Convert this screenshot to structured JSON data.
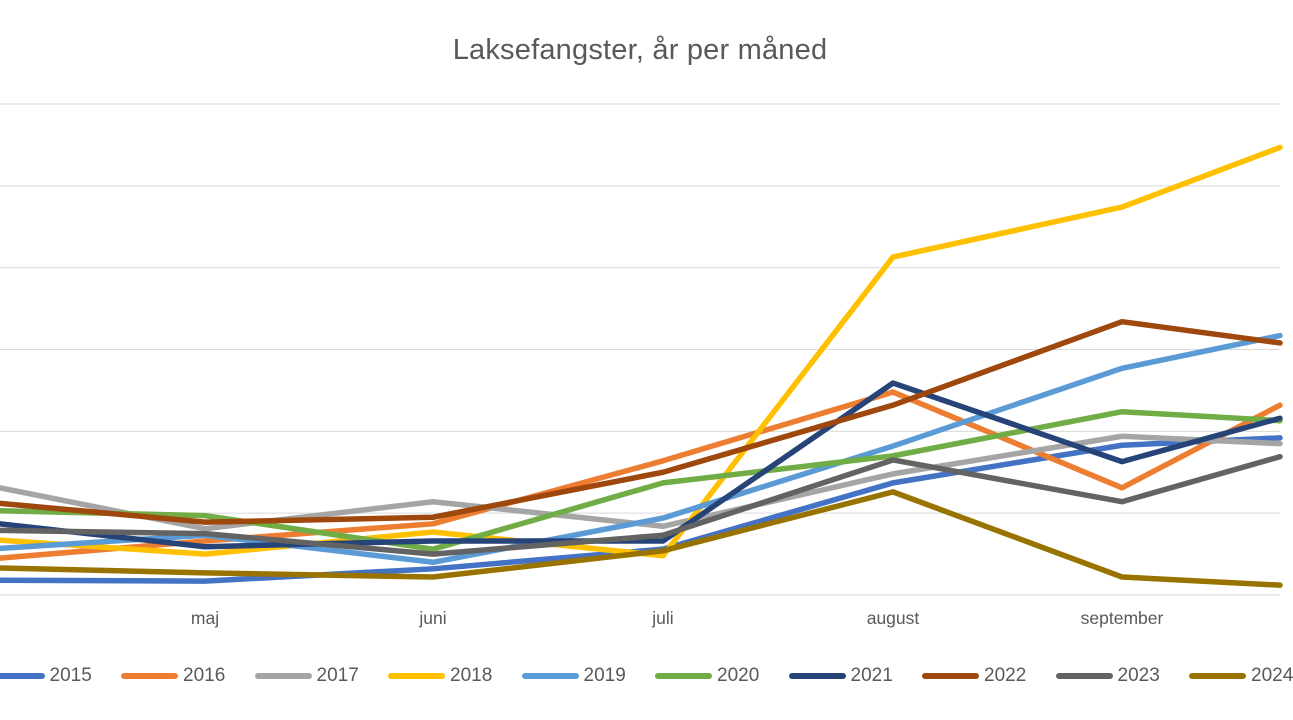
{
  "title": "Laksefangster, år per måned",
  "chart_data": {
    "type": "line",
    "title": "Laksefangster, år per måned",
    "categories": [
      "maj",
      "juni",
      "juli",
      "august",
      "september"
    ],
    "x_axis": {
      "tick_labels": [
        "maj",
        "juni",
        "juli",
        "august",
        "september"
      ],
      "note": "chart frame is cropped: every line continues past the left and right image edges"
    },
    "y_axis": {
      "tick_labels_visible": false,
      "gridline_count": 7,
      "range_gridline_units": [
        0,
        6
      ],
      "units_note": "values expressed in horizontal-gridline intervals above the bottom gridline; numeric axis labels lie outside the cropped frame"
    },
    "legend": {
      "position": "bottom",
      "entries": [
        "2015",
        "2016",
        "2017",
        "2018",
        "2019",
        "2020",
        "2021",
        "2022",
        "2023",
        "2024"
      ],
      "last_entry_clipped_at_right_edge": true,
      "first_swatch_clipped_at_left_edge": true
    },
    "grid": true,
    "series": [
      {
        "name": "2015",
        "color": "#4472C4",
        "edge_left": 0.18,
        "values": [
          0.17,
          0.32,
          0.56,
          1.37,
          1.83
        ],
        "edge_right": 1.92
      },
      {
        "name": "2016",
        "color": "#ED7D31",
        "edge_left": 0.45,
        "values": [
          0.66,
          0.87,
          1.64,
          2.48,
          1.31
        ],
        "edge_right": 2.32
      },
      {
        "name": "2017",
        "color": "#A5A5A5",
        "edge_left": 1.31,
        "values": [
          0.81,
          1.14,
          0.84,
          1.48,
          1.94
        ],
        "edge_right": 1.85
      },
      {
        "name": "2018",
        "color": "#FFC000",
        "edge_left": 0.67,
        "values": [
          0.5,
          0.77,
          0.48,
          4.13,
          4.74
        ],
        "edge_right": 5.47
      },
      {
        "name": "2019",
        "color": "#5B9BD5",
        "edge_left": 0.57,
        "values": [
          0.73,
          0.4,
          0.94,
          1.82,
          2.77
        ],
        "edge_right": 3.17
      },
      {
        "name": "2020",
        "color": "#70AD47",
        "edge_left": 1.03,
        "values": [
          0.97,
          0.56,
          1.37,
          1.7,
          2.24
        ],
        "edge_right": 2.13
      },
      {
        "name": "2021",
        "color": "#264478",
        "edge_left": 0.87,
        "values": [
          0.59,
          0.66,
          0.66,
          2.59,
          1.63
        ],
        "edge_right": 2.16
      },
      {
        "name": "2022",
        "color": "#9E480E",
        "edge_left": 1.12,
        "values": [
          0.89,
          0.95,
          1.5,
          2.32,
          3.34
        ],
        "edge_right": 3.08
      },
      {
        "name": "2023",
        "color": "#636363",
        "edge_left": 0.79,
        "values": [
          0.75,
          0.5,
          0.73,
          1.65,
          1.14
        ],
        "edge_right": 1.69
      },
      {
        "name": "2024",
        "color": "#997300",
        "edge_left": 0.33,
        "values": [
          0.27,
          0.22,
          0.54,
          1.26,
          0.22
        ],
        "edge_right": 0.12
      }
    ],
    "style": {
      "gridline_color": "#D9D9D9",
      "text_color": "#595959",
      "background": "#FFFFFF",
      "line_width": 5.5
    }
  }
}
